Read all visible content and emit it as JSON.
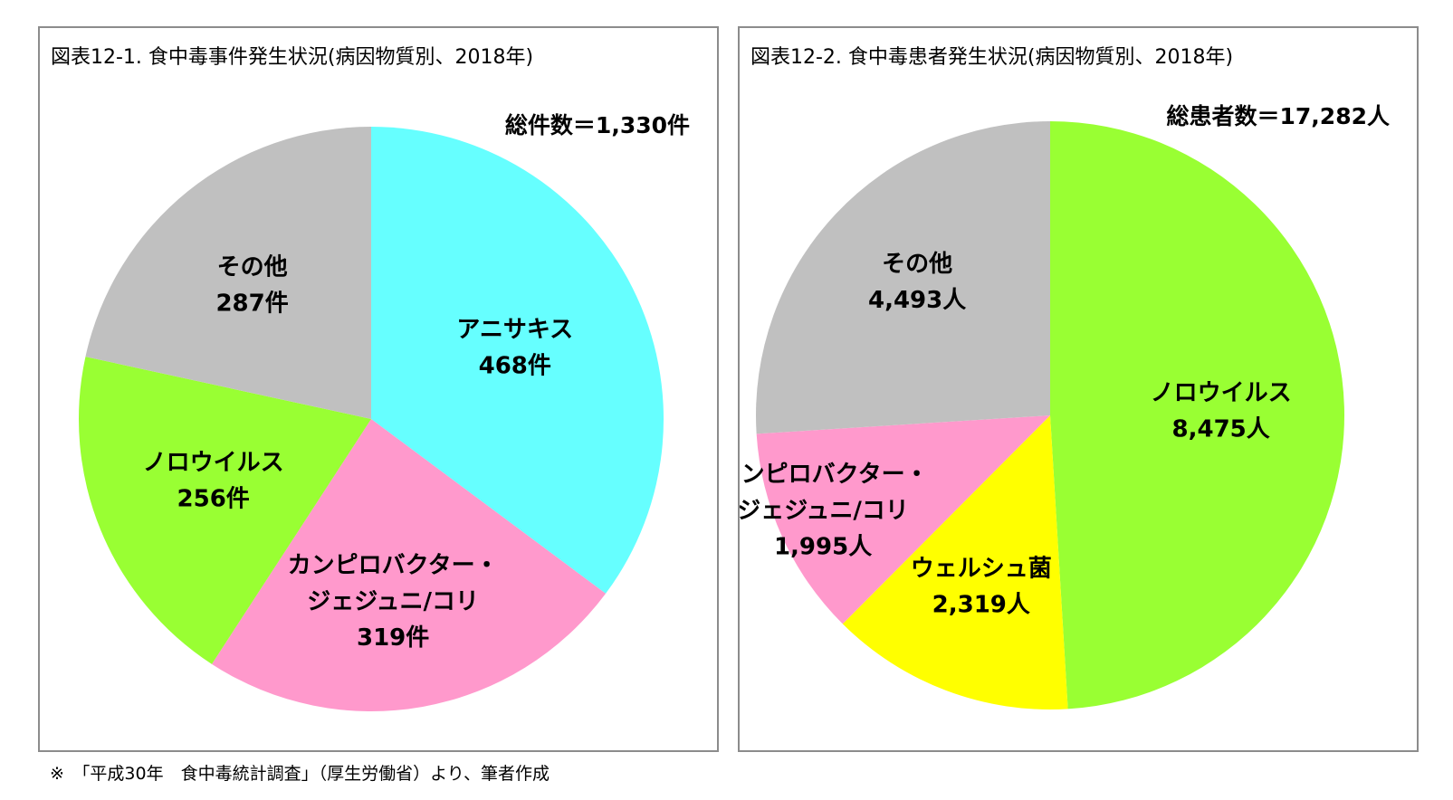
{
  "chart_data": [
    {
      "type": "pie",
      "title": "図表12-1.  食中毒事件発生状況(病因物質別、2018年)",
      "total_label": "総件数＝1,330件",
      "slices": [
        {
          "name": "アニサキス",
          "value": 468,
          "value_label": "468件",
          "color": "#66ffff"
        },
        {
          "name": "カンピロバクター・\nジェジュニ/コリ",
          "value": 319,
          "value_label": "319件",
          "color": "#ff99cc"
        },
        {
          "name": "ノロウイルス",
          "value": 256,
          "value_label": "256件",
          "color": "#99ff33"
        },
        {
          "name": "その他",
          "value": 287,
          "value_label": "287件",
          "color": "#c0c0c0"
        }
      ]
    },
    {
      "type": "pie",
      "title": "図表12-2.  食中毒患者発生状況(病因物質別、2018年)",
      "total_label": "総患者数＝17,282人",
      "slices": [
        {
          "name": "ノロウイルス",
          "value": 8475,
          "value_label": "8,475人",
          "color": "#99ff33"
        },
        {
          "name": "ウェルシュ菌",
          "value": 2319,
          "value_label": "2,319人",
          "color": "#ffff00"
        },
        {
          "name": "カンピロバクター・\nジェジュニ/コリ",
          "value": 1995,
          "value_label": "1,995人",
          "color": "#ff99cc"
        },
        {
          "name": "その他",
          "value": 4493,
          "value_label": "4,493人",
          "color": "#c0c0c0"
        }
      ]
    }
  ],
  "footnote": "※　「平成30年　食中毒統計調査」（厚生労働省）より、筆者作成"
}
